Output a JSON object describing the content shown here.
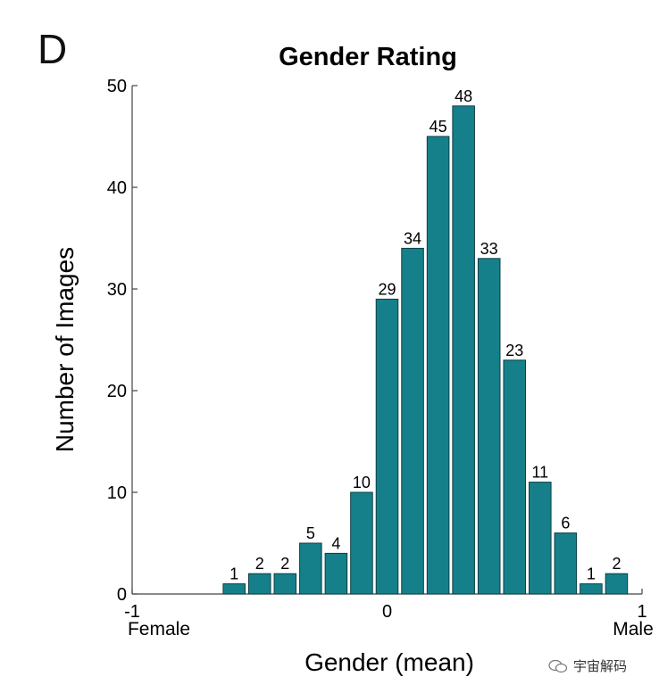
{
  "panel_label": "D",
  "watermark": {
    "text": "宇宙解码",
    "icon": "wechat-icon"
  },
  "colors": {
    "bar": "#16808a",
    "bar_edge": "#0b3e44",
    "axis": "#444444"
  },
  "chart_data": {
    "type": "bar",
    "title": "Gender Rating",
    "xlabel": "Gender (mean)",
    "ylabel": "Number of Images",
    "xlim": [
      -1,
      1
    ],
    "ylim": [
      0,
      50
    ],
    "bin_width": 0.1,
    "x": [
      -0.6,
      -0.5,
      -0.4,
      -0.3,
      -0.2,
      -0.1,
      0.0,
      0.1,
      0.2,
      0.3,
      0.4,
      0.5,
      0.6,
      0.7,
      0.8,
      0.9
    ],
    "values": [
      1,
      2,
      2,
      5,
      4,
      10,
      29,
      34,
      45,
      48,
      33,
      23,
      11,
      6,
      1,
      2
    ],
    "y_ticks": [
      0,
      10,
      20,
      30,
      40,
      50
    ],
    "x_ticks": [
      {
        "value": -1,
        "label": "-1",
        "sublabel": "Female"
      },
      {
        "value": 0,
        "label": "0",
        "sublabel": ""
      },
      {
        "value": 1,
        "label": "1",
        "sublabel": "Male"
      }
    ]
  }
}
